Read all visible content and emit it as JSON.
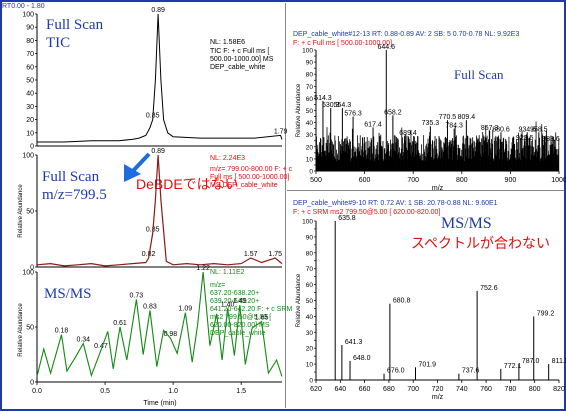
{
  "left": {
    "header_rt": "RT0.00 - 1.80",
    "x_axis_label": "Time (min)",
    "y_axis_label": "Relative Abundance",
    "x_ticks": [
      "0.0",
      "0.5",
      "1.0",
      "1.5"
    ],
    "y_ticks": [
      "100",
      "50",
      "0"
    ],
    "tic": {
      "label_line1": "Full Scan",
      "label_line2": "TIC",
      "info": [
        "NL: 1.58E6",
        "TIC F: + c Full ms [",
        "500.00-1000.00]  MS",
        "DEP_cable_white"
      ],
      "y_ticks_full": [
        "100",
        "90",
        "80",
        "70",
        "60",
        "50",
        "40",
        "30",
        "20",
        "10",
        "0"
      ]
    },
    "xic": {
      "label_line1": "Full Scan",
      "label_line2": "m/z=799.5",
      "info": [
        "NL: 2.24E3",
        "m/z= 799.00-800.00 F: + c",
        "Full ms [ 500.00-1000.00]",
        "MS  DEP_cable_white"
      ],
      "annotation": "DeBDEではない"
    },
    "msms": {
      "label": "MS/MS",
      "info": [
        "NL: 1.11E2",
        "m/z=",
        "637.20-638.20+",
        "639.20-640.20+",
        "641.20-642.20 F: + c SRM",
        "ms2 799.50@5.00 [",
        "620.00-820.00]  MS",
        "DEP_cable_white"
      ]
    }
  },
  "right": {
    "x_axis_label": "m/z",
    "y_axis_label": "Relative Abundance",
    "top": {
      "header": "DEP_cable_white#12-13 RT: 0.88-0.89 AV: 2 SB: 5 0.70-0.78 NL: 9.92E3",
      "filter": "F: + c Full ms [ 500.00-1000.00]",
      "label": "Full Scan",
      "x_ticks": [
        "500",
        "600",
        "700",
        "800",
        "900",
        "1000"
      ]
    },
    "bottom": {
      "header": "DEP_cable_white#9-10 RT: 0.72 AV: 1 SB: 20.78-0.88 NL: 9.60E1",
      "filter": "F: + c SRM ms2 799.50@5.00 [ 620.00-820.00]",
      "label": "MS/MS",
      "note": "スペクトルが合わない",
      "x_ticks": [
        "620",
        "640",
        "660",
        "680",
        "700",
        "720",
        "740",
        "760",
        "780",
        "800",
        "820"
      ]
    }
  },
  "chart_data": [
    {
      "type": "line",
      "title": "Full Scan TIC",
      "xlabel": "Time (min)",
      "ylabel": "Relative Abundance",
      "xlim": [
        0,
        1.8
      ],
      "ylim": [
        0,
        100
      ],
      "x": [
        0.0,
        0.2,
        0.4,
        0.6,
        0.7,
        0.75,
        0.8,
        0.83,
        0.85,
        0.87,
        0.89,
        0.91,
        0.93,
        0.96,
        1.0,
        1.2,
        1.4,
        1.6,
        1.79,
        1.8
      ],
      "values": [
        3,
        3,
        4,
        4,
        5,
        6,
        8,
        14,
        20,
        50,
        100,
        50,
        20,
        10,
        7,
        6,
        6,
        6,
        8,
        5
      ],
      "peak_labels": [
        {
          "x": 0.89,
          "y": 100,
          "text": "0.89"
        },
        {
          "x": 0.85,
          "y": 20,
          "text": "0.85"
        },
        {
          "x": 1.79,
          "y": 8,
          "text": "1.79"
        }
      ]
    },
    {
      "type": "line",
      "title": "Full Scan m/z=799.5",
      "xlabel": "Time (min)",
      "ylabel": "Relative Abundance",
      "xlim": [
        0,
        1.8
      ],
      "ylim": [
        0,
        100
      ],
      "x": [
        0.0,
        0.1,
        0.2,
        0.3,
        0.4,
        0.5,
        0.6,
        0.7,
        0.8,
        0.82,
        0.85,
        0.87,
        0.89,
        0.91,
        0.95,
        1.0,
        1.1,
        1.2,
        1.3,
        1.4,
        1.5,
        1.57,
        1.65,
        1.75,
        1.8
      ],
      "values": [
        2,
        3,
        1,
        2,
        3,
        1,
        2,
        3,
        4,
        8,
        30,
        60,
        100,
        60,
        5,
        2,
        3,
        2,
        3,
        2,
        3,
        8,
        4,
        8,
        3
      ],
      "peak_labels": [
        {
          "x": 0.89,
          "y": 100,
          "text": "0.89"
        },
        {
          "x": 0.85,
          "y": 30,
          "text": "0.85"
        },
        {
          "x": 0.82,
          "y": 8,
          "text": "0.82"
        },
        {
          "x": 1.57,
          "y": 8,
          "text": "1.57"
        },
        {
          "x": 1.75,
          "y": 8,
          "text": "1.75"
        }
      ]
    },
    {
      "type": "line",
      "title": "MS/MS",
      "xlabel": "Time (min)",
      "ylabel": "Relative Abundance",
      "xlim": [
        0,
        1.8
      ],
      "ylim": [
        0,
        100
      ],
      "x": [
        0.0,
        0.05,
        0.1,
        0.18,
        0.22,
        0.28,
        0.34,
        0.4,
        0.47,
        0.52,
        0.56,
        0.61,
        0.66,
        0.73,
        0.78,
        0.83,
        0.88,
        0.93,
        0.98,
        1.03,
        1.09,
        1.14,
        1.18,
        1.22,
        1.27,
        1.32,
        1.36,
        1.4,
        1.45,
        1.49,
        1.53,
        1.58,
        1.65,
        1.7,
        1.76,
        1.8
      ],
      "values": [
        5,
        30,
        8,
        43,
        10,
        22,
        35,
        6,
        29,
        46,
        12,
        50,
        20,
        75,
        25,
        65,
        14,
        47,
        40,
        26,
        63,
        18,
        52,
        100,
        33,
        62,
        20,
        67,
        24,
        70,
        16,
        49,
        55,
        8,
        20,
        5
      ],
      "peak_labels": [
        {
          "x": 0.18,
          "y": 43,
          "text": "0.18"
        },
        {
          "x": 0.34,
          "y": 35,
          "text": "0.34"
        },
        {
          "x": 0.47,
          "y": 29,
          "text": "0.47"
        },
        {
          "x": 0.61,
          "y": 50,
          "text": "0.61"
        },
        {
          "x": 0.73,
          "y": 75,
          "text": "0.73"
        },
        {
          "x": 0.83,
          "y": 65,
          "text": "0.83"
        },
        {
          "x": 0.98,
          "y": 40,
          "text": "0.98"
        },
        {
          "x": 1.09,
          "y": 63,
          "text": "1.09"
        },
        {
          "x": 1.22,
          "y": 100,
          "text": "1.22"
        },
        {
          "x": 1.4,
          "y": 67,
          "text": "1.40"
        },
        {
          "x": 1.49,
          "y": 70,
          "text": "1.49"
        },
        {
          "x": 1.65,
          "y": 55,
          "text": "1.65"
        }
      ]
    },
    {
      "type": "bar",
      "title": "Full Scan",
      "xlabel": "m/z",
      "ylabel": "Relative Abundance",
      "xlim": [
        500,
        1000
      ],
      "ylim": [
        0,
        100
      ],
      "peak_labels": [
        {
          "x": 514.3,
          "y": 58,
          "text": "514.3"
        },
        {
          "x": 530.3,
          "y": 52,
          "text": "530.3"
        },
        {
          "x": 554.3,
          "y": 52,
          "text": "554.3"
        },
        {
          "x": 576.3,
          "y": 45,
          "text": "576.3"
        },
        {
          "x": 617.4,
          "y": 36,
          "text": "617.4"
        },
        {
          "x": 644.6,
          "y": 100,
          "text": "644.6"
        },
        {
          "x": 658.2,
          "y": 46,
          "text": "658.2"
        },
        {
          "x": 689.4,
          "y": 29,
          "text": "689.4"
        },
        {
          "x": 735.3,
          "y": 37,
          "text": "735.3"
        },
        {
          "x": 770.5,
          "y": 42,
          "text": "770.5"
        },
        {
          "x": 784.3,
          "y": 35,
          "text": "784.3"
        },
        {
          "x": 809.4,
          "y": 42,
          "text": "809.4"
        },
        {
          "x": 857.3,
          "y": 33,
          "text": "857.3"
        },
        {
          "x": 880.6,
          "y": 32,
          "text": "880.6"
        },
        {
          "x": 929.5,
          "y": 25,
          "text": "929.5"
        },
        {
          "x": 934.6,
          "y": 32,
          "text": "934.6"
        },
        {
          "x": 958.5,
          "y": 32,
          "text": "958.5"
        },
        {
          "x": 983.6,
          "y": 24,
          "text": "983.6"
        }
      ]
    },
    {
      "type": "bar",
      "title": "MS/MS",
      "xlabel": "m/z",
      "ylabel": "Relative Abundance",
      "xlim": [
        620,
        820
      ],
      "ylim": [
        0,
        100
      ],
      "peak_labels": [
        {
          "x": 635.8,
          "y": 100,
          "text": "635.8"
        },
        {
          "x": 641.3,
          "y": 22,
          "text": "641.3"
        },
        {
          "x": 648.0,
          "y": 12,
          "text": "648.0"
        },
        {
          "x": 676.0,
          "y": 4,
          "text": "676.0"
        },
        {
          "x": 680.8,
          "y": 48,
          "text": "680.8"
        },
        {
          "x": 701.9,
          "y": 8,
          "text": "701.9"
        },
        {
          "x": 737.6,
          "y": 4,
          "text": "737.6"
        },
        {
          "x": 752.6,
          "y": 56,
          "text": "752.6"
        },
        {
          "x": 772.1,
          "y": 7,
          "text": "772.1"
        },
        {
          "x": 787.0,
          "y": 10,
          "text": "787.0"
        },
        {
          "x": 799.2,
          "y": 40,
          "text": "799.2"
        },
        {
          "x": 811.5,
          "y": 10,
          "text": "811.5"
        }
      ]
    }
  ]
}
